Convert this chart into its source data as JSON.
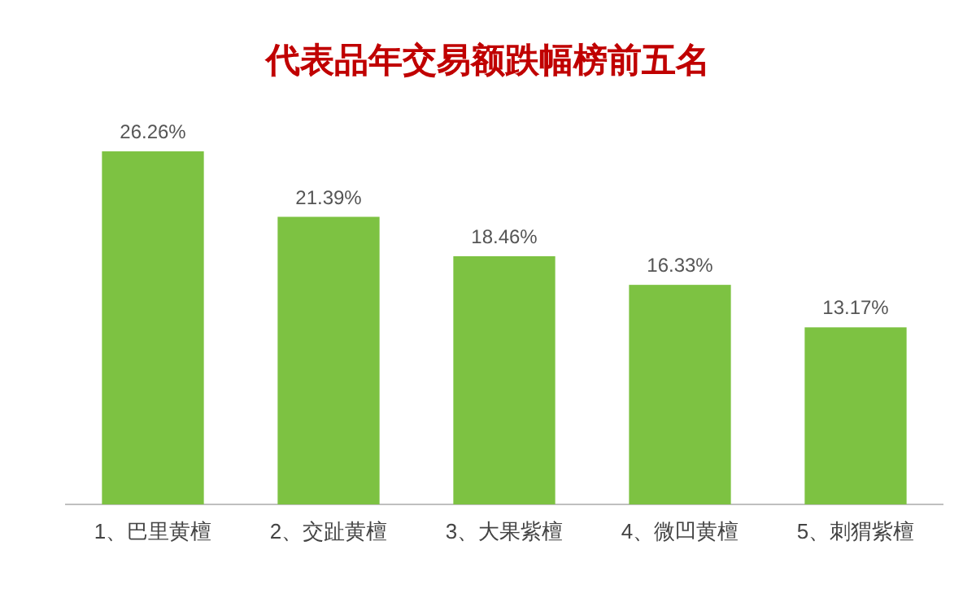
{
  "chart_data": {
    "type": "bar",
    "title": "代表品年交易额跌幅榜前五名",
    "categories": [
      "1、巴里黄檀",
      "2、交趾黄檀",
      "3、大果紫檀",
      "4、微凹黄檀",
      "5、刺猬紫檀"
    ],
    "values": [
      26.26,
      21.39,
      18.46,
      16.33,
      13.17
    ],
    "value_labels": [
      "26.26%",
      "21.39%",
      "18.46%",
      "16.33%",
      "13.17%"
    ],
    "color": "#7dc242"
  }
}
